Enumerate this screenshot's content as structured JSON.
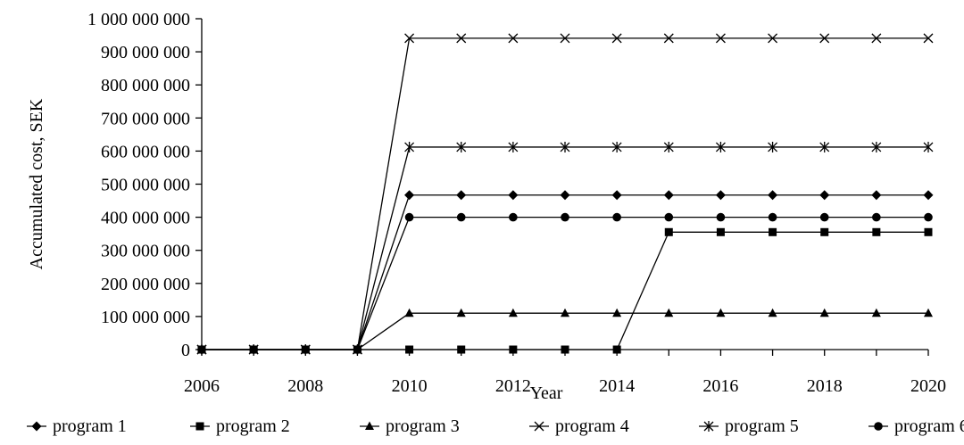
{
  "chart_data": {
    "type": "line",
    "title": "",
    "xlabel": "Year",
    "ylabel": "Accumulated cost, SEK",
    "x": [
      2006,
      2007,
      2008,
      2009,
      2010,
      2011,
      2012,
      2013,
      2014,
      2015,
      2016,
      2017,
      2018,
      2019,
      2020
    ],
    "xlim": [
      2006,
      2020
    ],
    "ylim": [
      0,
      1000000000
    ],
    "x_ticks": [
      2006,
      2008,
      2010,
      2012,
      2014,
      2016,
      2018,
      2020
    ],
    "x_tick_labels": [
      "2006",
      "2008",
      "2010",
      "2012",
      "2014",
      "2016",
      "2018",
      "2020"
    ],
    "y_ticks": [
      0,
      100000000,
      200000000,
      300000000,
      400000000,
      500000000,
      600000000,
      700000000,
      800000000,
      900000000,
      1000000000
    ],
    "y_tick_labels": [
      "0",
      "100 000 000",
      "200 000 000",
      "300 000 000",
      "400 000 000",
      "500 000 000",
      "600 000 000",
      "700 000 000",
      "800 000 000",
      "900 000 000",
      "1 000 000 000"
    ],
    "grid": false,
    "legend_position": "bottom",
    "series": [
      {
        "name": "program 1",
        "marker": "diamond",
        "color": "#000000",
        "values": [
          0,
          0,
          0,
          0,
          467000000,
          467000000,
          467000000,
          467000000,
          467000000,
          467000000,
          467000000,
          467000000,
          467000000,
          467000000,
          467000000
        ]
      },
      {
        "name": "program 2",
        "marker": "square",
        "color": "#000000",
        "values": [
          0,
          0,
          0,
          0,
          0,
          0,
          0,
          0,
          0,
          355000000,
          355000000,
          355000000,
          355000000,
          355000000,
          355000000
        ]
      },
      {
        "name": "program 3",
        "marker": "triangle",
        "color": "#000000",
        "values": [
          0,
          0,
          0,
          0,
          110000000,
          110000000,
          110000000,
          110000000,
          110000000,
          110000000,
          110000000,
          110000000,
          110000000,
          110000000,
          110000000
        ]
      },
      {
        "name": "program 4",
        "marker": "x",
        "color": "#000000",
        "values": [
          0,
          0,
          0,
          0,
          941000000,
          941000000,
          941000000,
          941000000,
          941000000,
          941000000,
          941000000,
          941000000,
          941000000,
          941000000,
          941000000
        ]
      },
      {
        "name": "program 5",
        "marker": "star",
        "color": "#000000",
        "values": [
          0,
          0,
          0,
          0,
          612000000,
          612000000,
          612000000,
          612000000,
          612000000,
          612000000,
          612000000,
          612000000,
          612000000,
          612000000,
          612000000
        ]
      },
      {
        "name": "program 6",
        "marker": "circle",
        "color": "#000000",
        "values": [
          0,
          0,
          0,
          0,
          400000000,
          400000000,
          400000000,
          400000000,
          400000000,
          400000000,
          400000000,
          400000000,
          400000000,
          400000000,
          400000000
        ]
      }
    ]
  }
}
